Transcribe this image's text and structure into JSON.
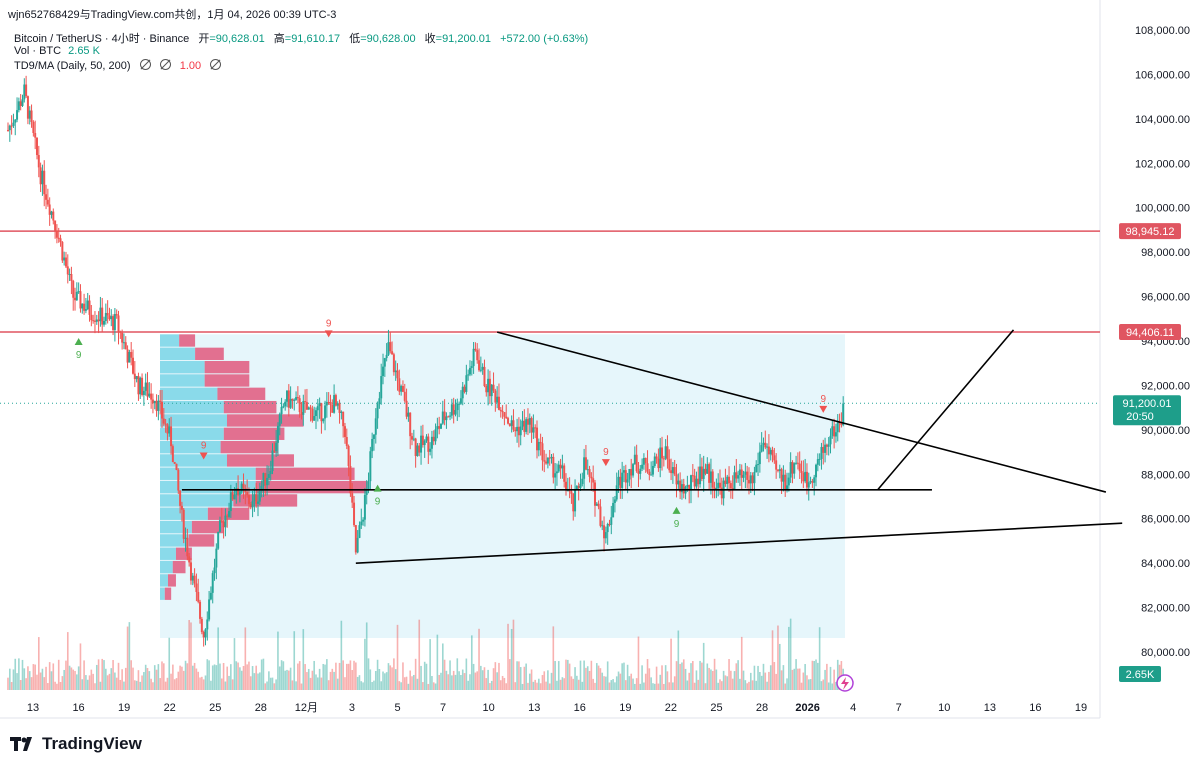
{
  "header": {
    "attribution": "wjn652768429与TradingView.com共创，1月 04, 2026 00:39 UTC-3"
  },
  "legend": {
    "symbol": "Bitcoin / TetherUS · 4小时 · Binance",
    "open_label": "开",
    "open_value": "=90,628.01",
    "high_label": "高",
    "high_value": "=91,610.17",
    "low_label": "低",
    "low_value": "=90,628.00",
    "close_label": "收",
    "close_value": "=91,200.01",
    "change": "+572.00 (+0.63%)",
    "volume_label": "Vol · BTC",
    "volume_value": "2.65 K",
    "indicator_label": "TD9/MA (Daily, 50, 200)",
    "indicator_value": "1.00"
  },
  "brand": {
    "name": "TradingView"
  },
  "colors": {
    "up": "#26a69a",
    "down": "#ef5350",
    "resistance": "#e05561",
    "price_badge": "#1e9e8a",
    "vp_buy": "#80d7e8",
    "vp_sell": "#e0587d",
    "vp_bg": "#e6f6fb"
  },
  "chart_data": {
    "type": "candlestick",
    "symbol": "Bitcoin / TetherUS",
    "timeframe": "4小时",
    "exchange": "Binance",
    "ylim": [
      79000,
      108500
    ],
    "y_ticks": [
      "108,000.00",
      "106,000.00",
      "104,000.00",
      "102,000.00",
      "100,000.00",
      "98,000.00",
      "96,000.00",
      "94,000.00",
      "92,000.00",
      "90,000.00",
      "88,000.00",
      "86,000.00",
      "84,000.00",
      "82,000.00",
      "80,000.00"
    ],
    "x_ticks": [
      "13",
      "16",
      "19",
      "22",
      "25",
      "28",
      "12月",
      "3",
      "5",
      "7",
      "10",
      "13",
      "16",
      "19",
      "22",
      "25",
      "28",
      "2026",
      "4",
      "7",
      "10",
      "13",
      "16",
      "19"
    ],
    "horizontal_levels": [
      {
        "price": 98945.12,
        "label": "98,945.12"
      },
      {
        "price": 94406.11,
        "label": "94,406.11"
      }
    ],
    "last_price": {
      "label": "91,200.01",
      "countdown": "20:50",
      "price": 91200.01
    },
    "volume_badge": "2.65K",
    "ohlc": {
      "open": 90628.01,
      "high": 91610.17,
      "low": 90628.0,
      "close": 91200.01,
      "change": 572.0,
      "change_pct": 0.63
    },
    "price_path": [
      {
        "t": 0,
        "p": 103500
      },
      {
        "t": 3,
        "p": 105200
      },
      {
        "t": 6,
        "p": 101500
      },
      {
        "t": 9,
        "p": 99000
      },
      {
        "t": 12,
        "p": 96000
      },
      {
        "t": 16,
        "p": 95200
      },
      {
        "t": 20,
        "p": 94800
      },
      {
        "t": 24,
        "p": 92000
      },
      {
        "t": 27,
        "p": 91500
      },
      {
        "t": 30,
        "p": 89500
      },
      {
        "t": 32,
        "p": 86000
      },
      {
        "t": 34,
        "p": 83200
      },
      {
        "t": 36,
        "p": 80800
      },
      {
        "t": 39,
        "p": 85500
      },
      {
        "t": 42,
        "p": 87500
      },
      {
        "t": 45,
        "p": 86600
      },
      {
        "t": 48,
        "p": 88200
      },
      {
        "t": 51,
        "p": 91400
      },
      {
        "t": 54,
        "p": 91000
      },
      {
        "t": 57,
        "p": 90700
      },
      {
        "t": 60,
        "p": 91200
      },
      {
        "t": 62,
        "p": 90000
      },
      {
        "t": 64,
        "p": 84500
      },
      {
        "t": 66,
        "p": 87200
      },
      {
        "t": 68,
        "p": 91500
      },
      {
        "t": 70,
        "p": 93700
      },
      {
        "t": 72,
        "p": 92000
      },
      {
        "t": 75,
        "p": 89200
      },
      {
        "t": 78,
        "p": 89500
      },
      {
        "t": 80,
        "p": 90500
      },
      {
        "t": 83,
        "p": 91300
      },
      {
        "t": 86,
        "p": 93500
      },
      {
        "t": 88,
        "p": 92000
      },
      {
        "t": 90,
        "p": 91500
      },
      {
        "t": 93,
        "p": 90000
      },
      {
        "t": 96,
        "p": 90300
      },
      {
        "t": 99,
        "p": 88500
      },
      {
        "t": 102,
        "p": 88000
      },
      {
        "t": 104,
        "p": 86500
      },
      {
        "t": 106,
        "p": 88500
      },
      {
        "t": 108,
        "p": 87000
      },
      {
        "t": 110,
        "p": 85200
      },
      {
        "t": 112,
        "p": 87500
      },
      {
        "t": 115,
        "p": 88500
      },
      {
        "t": 118,
        "p": 88300
      },
      {
        "t": 121,
        "p": 89000
      },
      {
        "t": 123,
        "p": 87500
      },
      {
        "t": 125,
        "p": 87300
      },
      {
        "t": 128,
        "p": 88300
      },
      {
        "t": 131,
        "p": 87300
      },
      {
        "t": 134,
        "p": 87800
      },
      {
        "t": 137,
        "p": 87700
      },
      {
        "t": 139,
        "p": 89600
      },
      {
        "t": 141,
        "p": 88200
      },
      {
        "t": 143,
        "p": 87700
      },
      {
        "t": 145,
        "p": 88700
      },
      {
        "t": 147,
        "p": 87600
      },
      {
        "t": 149,
        "p": 88500
      },
      {
        "t": 151,
        "p": 89600
      },
      {
        "t": 153,
        "p": 90300
      },
      {
        "t": 154,
        "p": 91200
      }
    ],
    "td9_markers": [
      {
        "label": "9",
        "dir": "up",
        "t": 13,
        "p": 94000
      },
      {
        "label": "9",
        "dir": "down",
        "t": 59,
        "p": 94300
      },
      {
        "label": "9",
        "dir": "up",
        "t": 68,
        "p": 87400
      },
      {
        "label": "9",
        "dir": "down",
        "t": 110,
        "p": 88500
      },
      {
        "label": "9",
        "dir": "up",
        "t": 123,
        "p": 86400
      },
      {
        "label": "9",
        "dir": "down",
        "t": 150,
        "p": 90900
      },
      {
        "label": "9",
        "dir": "down",
        "t": 36,
        "p": 88800
      }
    ],
    "volume_profile": {
      "levels": [
        {
          "price": 94000,
          "buy": 0.12,
          "sell": 0.1
        },
        {
          "price": 93400,
          "buy": 0.22,
          "sell": 0.18
        },
        {
          "price": 92800,
          "buy": 0.28,
          "sell": 0.28
        },
        {
          "price": 92200,
          "buy": 0.28,
          "sell": 0.28
        },
        {
          "price": 91600,
          "buy": 0.36,
          "sell": 0.3
        },
        {
          "price": 91000,
          "buy": 0.4,
          "sell": 0.33
        },
        {
          "price": 90400,
          "buy": 0.42,
          "sell": 0.48
        },
        {
          "price": 89800,
          "buy": 0.4,
          "sell": 0.38
        },
        {
          "price": 89200,
          "buy": 0.38,
          "sell": 0.36
        },
        {
          "price": 88600,
          "buy": 0.42,
          "sell": 0.42
        },
        {
          "price": 88000,
          "buy": 0.6,
          "sell": 0.62
        },
        {
          "price": 87400,
          "buy": 0.6,
          "sell": 0.7
        },
        {
          "price": 86800,
          "buy": 0.46,
          "sell": 0.4
        },
        {
          "price": 86200,
          "buy": 0.3,
          "sell": 0.26
        },
        {
          "price": 85600,
          "buy": 0.2,
          "sell": 0.2
        },
        {
          "price": 85000,
          "buy": 0.18,
          "sell": 0.16
        },
        {
          "price": 84400,
          "buy": 0.1,
          "sell": 0.1
        },
        {
          "price": 83800,
          "buy": 0.08,
          "sell": 0.08
        },
        {
          "price": 83200,
          "buy": 0.05,
          "sell": 0.05
        },
        {
          "price": 82600,
          "buy": 0.03,
          "sell": 0.04
        }
      ]
    },
    "trendlines": [
      {
        "name": "descending",
        "from": {
          "t": 90,
          "p": 94400
        },
        "to": {
          "t": 202,
          "p": 87200
        }
      },
      {
        "name": "ascending-support",
        "from": {
          "t": 64,
          "p": 84000
        },
        "to": {
          "t": 205,
          "p": 85800
        }
      },
      {
        "name": "horizontal-support",
        "from": {
          "t": 32,
          "p": 87300
        },
        "to": {
          "t": 170,
          "p": 87300
        }
      },
      {
        "name": "breakout",
        "from": {
          "t": 160,
          "p": 87300
        },
        "to": {
          "t": 185,
          "p": 94500
        }
      }
    ]
  }
}
